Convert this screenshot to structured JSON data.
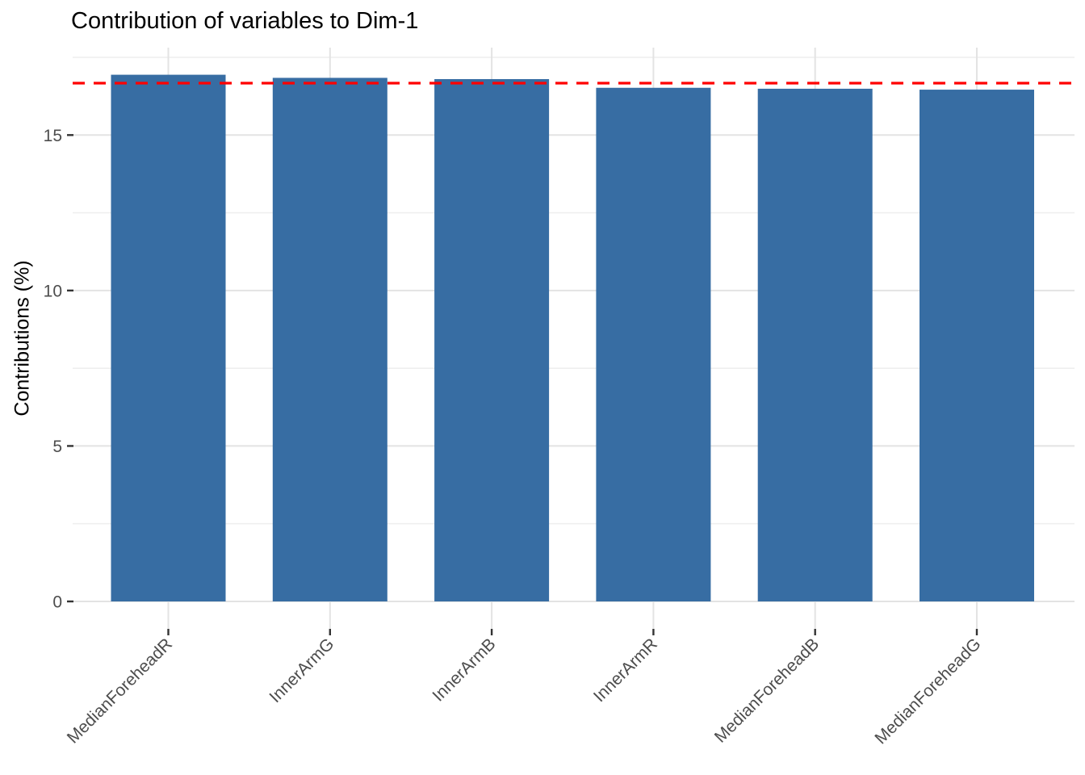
{
  "chart_data": {
    "type": "bar",
    "title": "Contribution of variables to Dim-1",
    "xlabel": "",
    "ylabel": "Contributions (%)",
    "categories": [
      "MedianForeheadR",
      "InnerArmG",
      "InnerArmB",
      "InnerArmR",
      "MedianForeheadB",
      "MedianForeheadG"
    ],
    "values": [
      16.94,
      16.84,
      16.8,
      16.52,
      16.49,
      16.46
    ],
    "yticks": [
      0,
      5,
      10,
      15
    ],
    "yticks_minor": [
      2.5,
      7.5,
      12.5,
      17.5
    ],
    "ylim": [
      0,
      17.8
    ],
    "grid": true,
    "legend": "none",
    "x_tick_angle": 45,
    "ref_line_value": 16.67
  },
  "colors": {
    "bar_fill": "#376DA3",
    "ref_line": "#FF0000",
    "grid_major": "#E3E3E3",
    "grid_minor": "#EFEFEF",
    "axis_text": "#4D4D4D",
    "tick_mark": "#333333",
    "title_text": "#000000",
    "background": "#FFFFFF"
  }
}
